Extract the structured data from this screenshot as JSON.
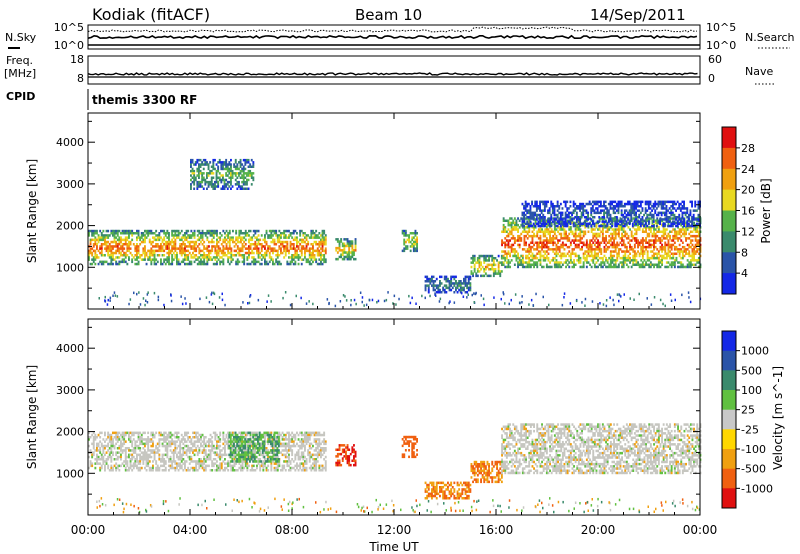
{
  "header": {
    "station": "Kodiak (fitACF)",
    "beam": "Beam 10",
    "date": "14/Sep/2011"
  },
  "noise_panel": {
    "left_label": "N.Sky",
    "right_label": "N.Search",
    "left_ticks": [
      "10^5",
      "10^0"
    ],
    "right_ticks": [
      "10^5",
      "10^0"
    ]
  },
  "freq_panel": {
    "left_label_1": "Freq.",
    "left_label_2": "[MHz]",
    "right_label": "Nave",
    "left_ticks": [
      "18",
      "8"
    ],
    "right_ticks": [
      "60",
      "0"
    ]
  },
  "cpid_panel": {
    "label": "CPID",
    "value": "themis 3300 RF"
  },
  "colors": {
    "power_scale": [
      "#1428e6",
      "#2a54a8",
      "#3a8a6c",
      "#56b24a",
      "#e8d820",
      "#f0a010",
      "#f06010",
      "#e01010"
    ],
    "velocity_scale": [
      "#e01010",
      "#f06010",
      "#f0a010",
      "#ffd700",
      "#c8c8c8",
      "#c8c8c8",
      "#60c040",
      "#3a8a6c",
      "#2a54a8",
      "#1428e6"
    ],
    "ground_scatter": "#c6c6c0"
  },
  "chart_data": [
    {
      "type": "heatmap",
      "title": "",
      "ylabel": "Slant Range [km]",
      "xlabel": "",
      "ylim": [
        0,
        4700
      ],
      "yticks": [
        "1000",
        "2000",
        "3000",
        "4000"
      ],
      "xlim_hours": [
        0,
        24
      ],
      "colorbar": {
        "label": "Power [dB]",
        "ticks": [
          "4",
          "8",
          "12",
          "16",
          "20",
          "24",
          "28"
        ],
        "range": [
          0,
          32
        ]
      },
      "echo_regions": [
        {
          "t0": 0.0,
          "t1": 9.3,
          "r0": 1100,
          "r1": 1900,
          "peak_db": 26
        },
        {
          "t0": 4.0,
          "t1": 6.5,
          "r0": 2900,
          "r1": 3600,
          "peak_db": 14
        },
        {
          "t0": 9.7,
          "t1": 10.5,
          "r0": 1200,
          "r1": 1700,
          "peak_db": 22
        },
        {
          "t0": 12.3,
          "t1": 12.9,
          "r0": 1400,
          "r1": 1900,
          "peak_db": 20
        },
        {
          "t0": 13.2,
          "t1": 15.0,
          "r0": 400,
          "r1": 800,
          "peak_db": 10
        },
        {
          "t0": 15.0,
          "t1": 16.2,
          "r0": 800,
          "r1": 1300,
          "peak_db": 22
        },
        {
          "t0": 16.2,
          "t1": 24.0,
          "r0": 1000,
          "r1": 2200,
          "peak_db": 28
        },
        {
          "t0": 17.0,
          "t1": 24.0,
          "r0": 2000,
          "r1": 2600,
          "peak_db": 6
        }
      ]
    },
    {
      "type": "heatmap",
      "title": "",
      "ylabel": "Slant Range [km]",
      "xlabel": "Time UT",
      "ylim": [
        0,
        4700
      ],
      "yticks": [
        "1000",
        "2000",
        "3000",
        "4000"
      ],
      "xticks": [
        "00:00",
        "04:00",
        "08:00",
        "12:00",
        "16:00",
        "20:00",
        "00:00"
      ],
      "xlim_hours": [
        0,
        24
      ],
      "colorbar": {
        "label": "Velocity [m s^-1]",
        "ticks": [
          "1000",
          "500",
          "100",
          "25",
          "-25",
          "-100",
          "-500",
          "-1000"
        ],
        "range": [
          -1000,
          1000
        ]
      },
      "echo_regions": [
        {
          "t0": 0.0,
          "t1": 9.3,
          "r0": 1100,
          "r1": 2000,
          "velocity": 0
        },
        {
          "t0": 5.5,
          "t1": 7.5,
          "r0": 1300,
          "r1": 2000,
          "velocity": 100
        },
        {
          "t0": 9.7,
          "t1": 10.5,
          "r0": 1200,
          "r1": 1700,
          "velocity": -500
        },
        {
          "t0": 12.3,
          "t1": 12.9,
          "r0": 1400,
          "r1": 1900,
          "velocity": -300
        },
        {
          "t0": 13.2,
          "t1": 15.0,
          "r0": 400,
          "r1": 800,
          "velocity": -100
        },
        {
          "t0": 15.0,
          "t1": 16.2,
          "r0": 800,
          "r1": 1300,
          "velocity": -100
        },
        {
          "t0": 16.2,
          "t1": 24.0,
          "r0": 1000,
          "r1": 2200,
          "velocity": 0
        }
      ]
    }
  ]
}
